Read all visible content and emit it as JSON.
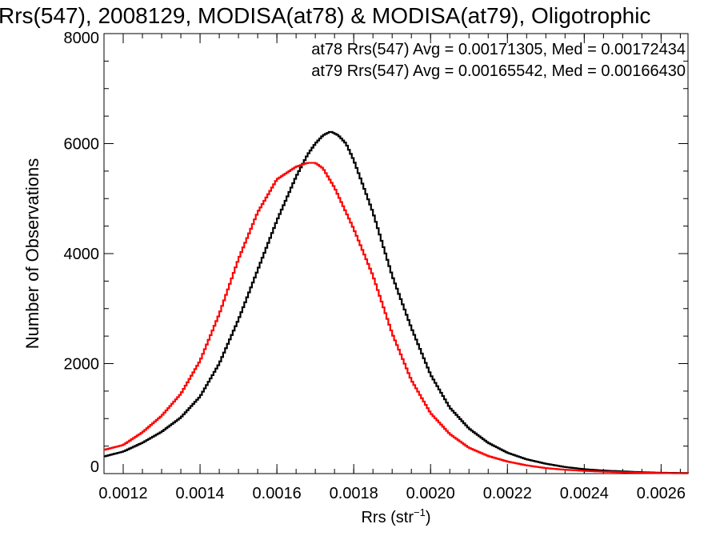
{
  "chart_data": {
    "type": "line",
    "title": "Rrs(547), 2008129, MODISA(at78) & MODISA(at79), Oligotrophic",
    "xlabel": "Rrs (str",
    "xlabel_sup": "−1",
    "xlabel_end": ")",
    "ylabel": "Number of Observations",
    "xlim": [
      0.00115,
      0.00267
    ],
    "ylim": [
      0,
      8000
    ],
    "x_ticks": [
      0.0012,
      0.0014,
      0.0016,
      0.0018,
      0.002,
      0.0022,
      0.0024,
      0.0026
    ],
    "x_tick_labels": [
      "0.0012",
      "0.0014",
      "0.0016",
      "0.0018",
      "0.0020",
      "0.0022",
      "0.0024",
      "0.0026"
    ],
    "y_ticks": [
      0,
      2000,
      4000,
      6000,
      8000
    ],
    "y_tick_labels": [
      "0",
      "2000",
      "4000",
      "6000",
      "8000"
    ],
    "grid": false,
    "legend_position": "top-right",
    "series": [
      {
        "name": "at78 Rrs(547) Avg = 0.00171305, Med = 0.00172434",
        "color": "#000000",
        "x": [
          0.00115,
          0.0012,
          0.00125,
          0.0013,
          0.00135,
          0.0014,
          0.00145,
          0.0015,
          0.00155,
          0.0016,
          0.00165,
          0.00168,
          0.0017,
          0.00172,
          0.00174,
          0.00176,
          0.00178,
          0.0018,
          0.00185,
          0.0019,
          0.00195,
          0.002,
          0.00205,
          0.0021,
          0.00215,
          0.0022,
          0.00225,
          0.0023,
          0.00235,
          0.0024,
          0.00245,
          0.0025,
          0.00255,
          0.0026,
          0.00267
        ],
        "y": [
          310,
          400,
          560,
          760,
          1020,
          1400,
          2000,
          2800,
          3700,
          4600,
          5400,
          5800,
          6000,
          6150,
          6220,
          6150,
          6000,
          5700,
          4750,
          3600,
          2650,
          1800,
          1200,
          820,
          560,
          380,
          260,
          180,
          120,
          80,
          55,
          40,
          25,
          15,
          10
        ]
      },
      {
        "name": "at79 Rrs(547) Avg = 0.00165542, Med = 0.00166430",
        "color": "#ff0000",
        "x": [
          0.00115,
          0.0012,
          0.00125,
          0.0013,
          0.00135,
          0.0014,
          0.00145,
          0.0015,
          0.00155,
          0.0016,
          0.00165,
          0.00168,
          0.0017,
          0.00172,
          0.00175,
          0.00178,
          0.0018,
          0.00185,
          0.0019,
          0.00195,
          0.002,
          0.00205,
          0.0021,
          0.00215,
          0.0022,
          0.00225,
          0.0023,
          0.00235,
          0.0024,
          0.00245,
          0.0025,
          0.00255,
          0.0026,
          0.00267
        ],
        "y": [
          430,
          520,
          750,
          1050,
          1450,
          2050,
          2900,
          3900,
          4750,
          5350,
          5580,
          5650,
          5650,
          5550,
          5200,
          4750,
          4450,
          3600,
          2550,
          1700,
          1100,
          720,
          470,
          320,
          220,
          150,
          100,
          70,
          50,
          35,
          25,
          15,
          10,
          5
        ]
      }
    ]
  }
}
